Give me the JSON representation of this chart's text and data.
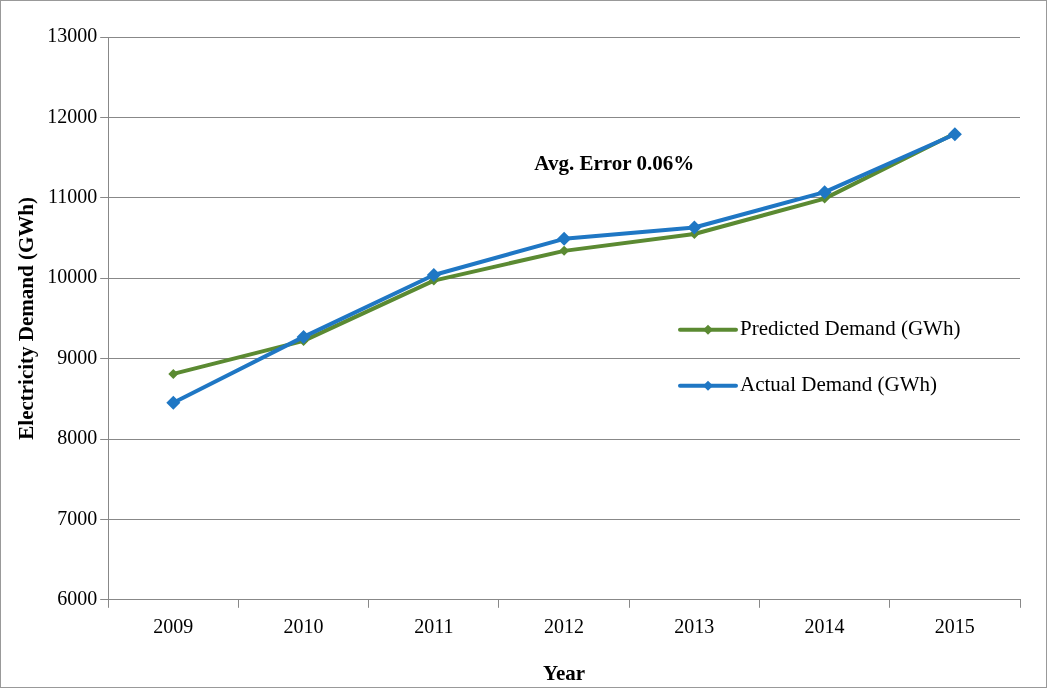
{
  "chart_data": {
    "type": "line",
    "xlabel": "Year",
    "ylabel": "Electricity Demand (GWh)",
    "categories": [
      "2009",
      "2010",
      "2011",
      "2012",
      "2013",
      "2014",
      "2015"
    ],
    "series": [
      {
        "name": "Predicted Demand (GWh)",
        "color": "#5b8a32",
        "values": [
          8810,
          9220,
          9970,
          10340,
          10550,
          10990,
          11800
        ]
      },
      {
        "name": "Actual Demand (GWh)",
        "color": "#1f77c4",
        "values": [
          8450,
          9270,
          10040,
          10490,
          10630,
          11070,
          11790
        ]
      }
    ],
    "ylim": [
      6000,
      13000
    ],
    "yticks": [
      6000,
      7000,
      8000,
      9000,
      10000,
      11000,
      12000,
      13000
    ],
    "grid": "y",
    "legend": "right",
    "marker": "diamond",
    "line_style": "solid",
    "annotations": [
      "Avg. Error 0.06%"
    ]
  }
}
